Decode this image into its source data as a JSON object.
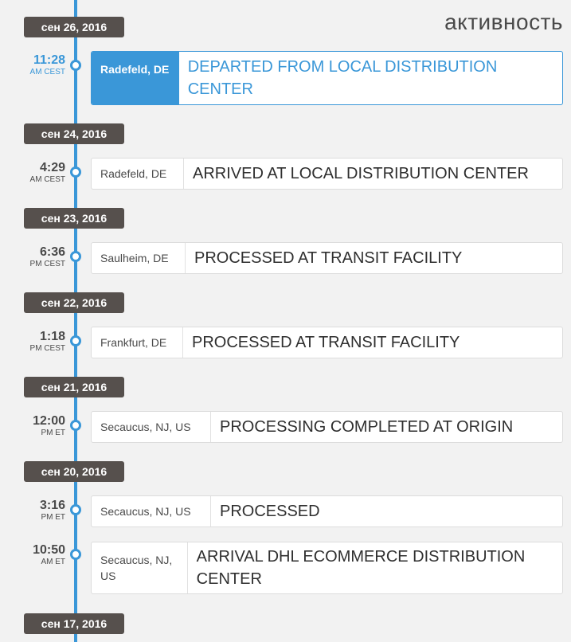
{
  "heading": "активность",
  "groups": [
    {
      "date": "сен 26, 2016",
      "events": [
        {
          "time": "11:28",
          "zone": "AM CEST",
          "location": "Radefeld, DE",
          "status": "DEPARTED FROM LOCAL DISTRIBUTION CENTER"
        }
      ]
    },
    {
      "date": "сен 24, 2016",
      "events": [
        {
          "time": "4:29",
          "zone": "AM CEST",
          "location": "Radefeld, DE",
          "status": "ARRIVED AT LOCAL DISTRIBUTION CENTER"
        }
      ]
    },
    {
      "date": "сен 23, 2016",
      "events": [
        {
          "time": "6:36",
          "zone": "PM CEST",
          "location": "Saulheim, DE",
          "status": "PROCESSED AT TRANSIT FACILITY"
        }
      ]
    },
    {
      "date": "сен 22, 2016",
      "events": [
        {
          "time": "1:18",
          "zone": "PM CEST",
          "location": "Frankfurt, DE",
          "status": "PROCESSED AT TRANSIT FACILITY"
        }
      ]
    },
    {
      "date": "сен 21, 2016",
      "events": [
        {
          "time": "12:00",
          "zone": "PM ET",
          "location": "Secaucus, NJ, US",
          "status": "PROCESSING COMPLETED AT ORIGIN"
        }
      ]
    },
    {
      "date": "сен 20, 2016",
      "events": [
        {
          "time": "3:16",
          "zone": "PM ET",
          "location": "Secaucus, NJ, US",
          "status": "PROCESSED"
        },
        {
          "time": "10:50",
          "zone": "AM ET",
          "location": "Secaucus, NJ, US",
          "status": "ARRIVAL DHL ECOMMERCE DISTRIBUTION CENTER"
        }
      ]
    },
    {
      "date": "сен 17, 2016",
      "events": []
    }
  ]
}
